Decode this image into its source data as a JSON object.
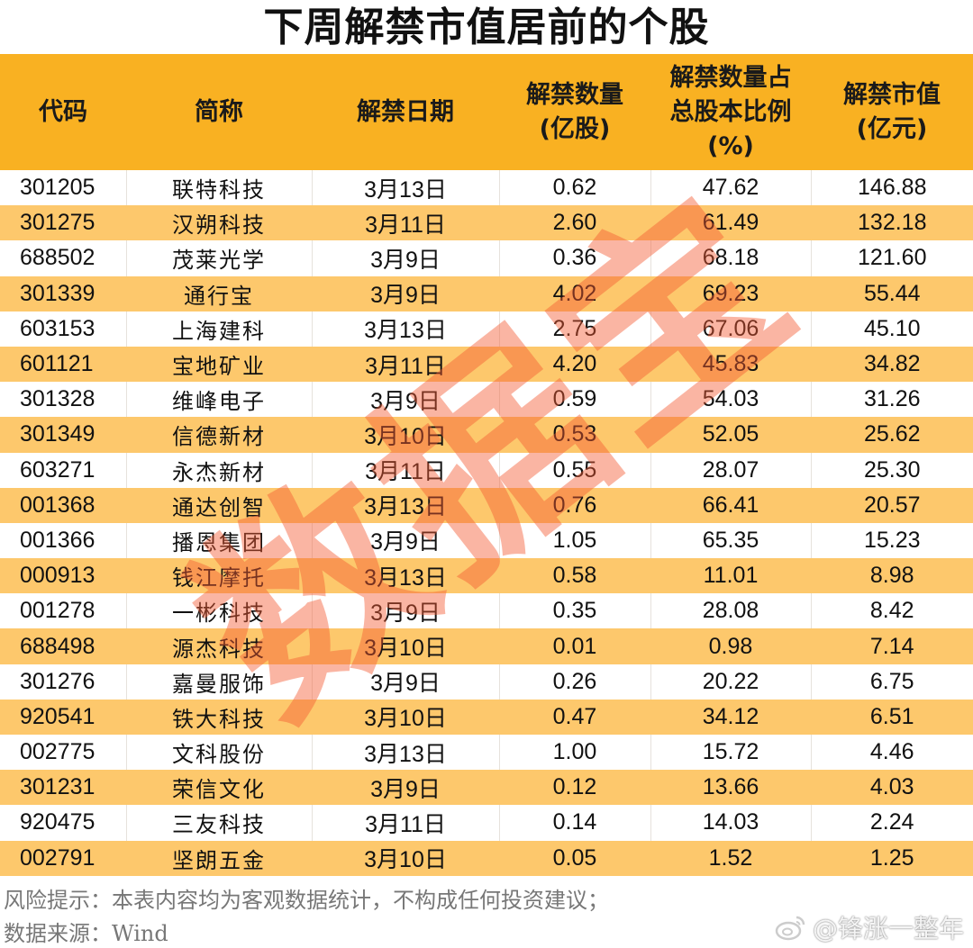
{
  "title": "下周解禁市值居前的个股",
  "table": {
    "headers": [
      "代码",
      "简称",
      "解禁日期",
      "解禁数量\n(亿股)",
      "解禁数量占\n总股本比例\n(%)",
      "解禁市值\n(亿元)"
    ],
    "header_color": "#f9b122",
    "stripe_color": "#fdc86c",
    "rows": [
      {
        "code": "301205",
        "name": "联特科技",
        "date": "3月13日",
        "qty": "0.62",
        "ratio": "47.62",
        "value": "146.88"
      },
      {
        "code": "301275",
        "name": "汉朔科技",
        "date": "3月11日",
        "qty": "2.60",
        "ratio": "61.49",
        "value": "132.18"
      },
      {
        "code": "688502",
        "name": "茂莱光学",
        "date": "3月9日",
        "qty": "0.36",
        "ratio": "68.18",
        "value": "121.60"
      },
      {
        "code": "301339",
        "name": "通行宝",
        "date": "3月9日",
        "qty": "4.02",
        "ratio": "69.23",
        "value": "55.44"
      },
      {
        "code": "603153",
        "name": "上海建科",
        "date": "3月13日",
        "qty": "2.75",
        "ratio": "67.06",
        "value": "45.10"
      },
      {
        "code": "601121",
        "name": "宝地矿业",
        "date": "3月11日",
        "qty": "4.20",
        "ratio": "45.83",
        "value": "34.82"
      },
      {
        "code": "301328",
        "name": "维峰电子",
        "date": "3月9日",
        "qty": "0.59",
        "ratio": "54.03",
        "value": "31.26"
      },
      {
        "code": "301349",
        "name": "信德新材",
        "date": "3月10日",
        "qty": "0.53",
        "ratio": "52.05",
        "value": "25.62"
      },
      {
        "code": "603271",
        "name": "永杰新材",
        "date": "3月11日",
        "qty": "0.55",
        "ratio": "28.07",
        "value": "25.30"
      },
      {
        "code": "001368",
        "name": "通达创智",
        "date": "3月13日",
        "qty": "0.76",
        "ratio": "66.41",
        "value": "20.57"
      },
      {
        "code": "001366",
        "name": "播恩集团",
        "date": "3月9日",
        "qty": "1.05",
        "ratio": "65.35",
        "value": "15.23"
      },
      {
        "code": "000913",
        "name": "钱江摩托",
        "date": "3月13日",
        "qty": "0.58",
        "ratio": "11.01",
        "value": "8.98"
      },
      {
        "code": "001278",
        "name": "一彬科技",
        "date": "3月9日",
        "qty": "0.35",
        "ratio": "28.08",
        "value": "8.42"
      },
      {
        "code": "688498",
        "name": "源杰科技",
        "date": "3月10日",
        "qty": "0.01",
        "ratio": "0.98",
        "value": "7.14"
      },
      {
        "code": "301276",
        "name": "嘉曼服饰",
        "date": "3月9日",
        "qty": "0.26",
        "ratio": "20.22",
        "value": "6.75"
      },
      {
        "code": "920541",
        "name": "铁大科技",
        "date": "3月10日",
        "qty": "0.47",
        "ratio": "34.12",
        "value": "6.51"
      },
      {
        "code": "002775",
        "name": "文科股份",
        "date": "3月13日",
        "qty": "1.00",
        "ratio": "15.72",
        "value": "4.46"
      },
      {
        "code": "301231",
        "name": "荣信文化",
        "date": "3月9日",
        "qty": "0.12",
        "ratio": "13.66",
        "value": "4.03"
      },
      {
        "code": "920475",
        "name": "三友科技",
        "date": "3月11日",
        "qty": "0.14",
        "ratio": "14.03",
        "value": "2.24"
      },
      {
        "code": "002791",
        "name": "坚朗五金",
        "date": "3月10日",
        "qty": "0.05",
        "ratio": "1.52",
        "value": "1.25"
      }
    ]
  },
  "watermark": "数据宝",
  "footer": {
    "risk_note": "风险提示：本表内容均为客观数据统计，不构成任何投资建议；",
    "source": "数据来源：Wind"
  },
  "credit": {
    "icon": "weibo-icon",
    "handle": "@锋涨一整年"
  }
}
